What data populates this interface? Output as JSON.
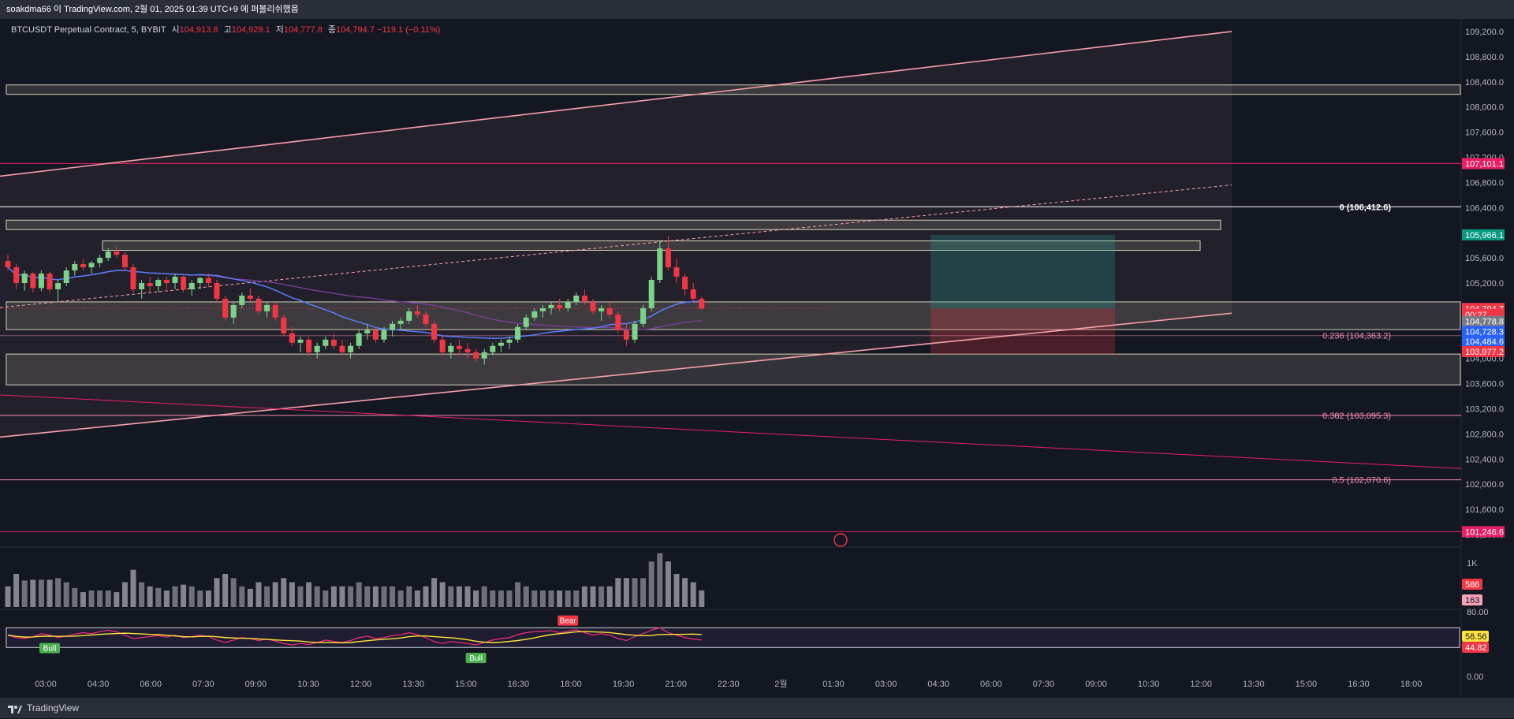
{
  "topbar": {
    "text": "soakdma66 이 TradingView.com, 2월 01, 2025 01:39 UTC+9 에 퍼블리쉬했음"
  },
  "legend": {
    "symbol": "BTCUSDT Perpetual Contract, 5, BYBIT",
    "open_label": "시",
    "open": "104,913.8",
    "high_label": "고",
    "high": "104,929.1",
    "low_label": "저",
    "low": "104,777.8",
    "close_label": "종",
    "close": "104,794.7",
    "change": "−119.1 (−0.11%)"
  },
  "footer": {
    "brand": "TradingView"
  },
  "colors": {
    "up": "#26a69a",
    "up_candle": "#7bd389",
    "down": "#f23645",
    "channel": "#f7a0a8",
    "ma_blue": "#5b7cfa",
    "ma_purple": "#7e3fa0",
    "rsi": "#f02c76",
    "rsi_ma": "#ffe23d"
  },
  "chart_data": {
    "type": "candlestick",
    "price_axis": {
      "range": [
        101000,
        109400
      ],
      "ticks": [
        "109,200.0",
        "108,800.0",
        "108,400.0",
        "108,000.0",
        "107,600.0",
        "107,200.0",
        "106,800.0",
        "106,400.0",
        "106,000.0",
        "105,600.0",
        "105,200.0",
        "104,800.0",
        "104,400.0",
        "104,000.0",
        "103,600.0",
        "103,200.0",
        "102,800.0",
        "102,400.0",
        "102,000.0",
        "101,600.0",
        "101,200.0"
      ]
    },
    "time_axis": [
      "03:00",
      "04:30",
      "06:00",
      "07:30",
      "09:00",
      "10:30",
      "12:00",
      "13:30",
      "15:00",
      "16:30",
      "18:00",
      "19:30",
      "21:00",
      "22:30",
      "2월",
      "01:30",
      "03:00",
      "04:30",
      "06:00",
      "07:30",
      "09:00",
      "10:30",
      "12:00",
      "13:30",
      "15:00",
      "16:30",
      "18:00"
    ],
    "price_labels": [
      {
        "text": "107,101.1",
        "price": 107101.1,
        "color": "#e91e63"
      },
      {
        "text": "105,966.1",
        "price": 105966.1,
        "color": "#089981"
      },
      {
        "text": "104,794.7",
        "price": 104794.7,
        "color": "#f23645"
      },
      {
        "text": "00:27",
        "price": 104700,
        "color": "#f23645"
      },
      {
        "text": "104,778.8",
        "price": 104590,
        "color": "#787b86"
      },
      {
        "text": "104,728.3",
        "price": 104430,
        "color": "#2962ff"
      },
      {
        "text": "104,484.6",
        "price": 104270,
        "color": "#2962ff"
      },
      {
        "text": "103,977.2",
        "price": 104110,
        "color": "#f23645"
      },
      {
        "text": "101,246.6",
        "price": 101246.6,
        "color": "#e91e63"
      }
    ],
    "fib_levels": [
      {
        "label": "0 (106,412.6)",
        "price": 106412.6
      },
      {
        "label": "0.236 (104,363.2)",
        "price": 104363.2
      },
      {
        "label": "0.382 (103,095.3)",
        "price": 103095.3
      },
      {
        "label": "0.5 (102,070.6)",
        "price": 102070.6
      }
    ],
    "series": [
      {
        "kind": "ohlc",
        "values": [
          [
            105550,
            105650,
            105400,
            105450
          ],
          [
            105450,
            105500,
            105100,
            105200
          ],
          [
            105200,
            105400,
            105080,
            105350
          ],
          [
            105350,
            105380,
            105050,
            105120
          ],
          [
            105120,
            105400,
            105070,
            105350
          ],
          [
            105350,
            105380,
            105050,
            105100
          ],
          [
            105100,
            105250,
            104900,
            105200
          ],
          [
            105200,
            105450,
            105150,
            105400
          ],
          [
            105400,
            105550,
            105320,
            105500
          ],
          [
            105500,
            105580,
            105400,
            105450
          ],
          [
            105450,
            105550,
            105350,
            105520
          ],
          [
            105520,
            105650,
            105450,
            105600
          ],
          [
            105600,
            105750,
            105550,
            105700
          ],
          [
            105700,
            105780,
            105600,
            105650
          ],
          [
            105650,
            105700,
            105400,
            105450
          ],
          [
            105450,
            105500,
            105050,
            105100
          ],
          [
            105100,
            105250,
            104950,
            105200
          ],
          [
            105200,
            105300,
            105050,
            105150
          ],
          [
            105150,
            105280,
            105050,
            105250
          ],
          [
            105250,
            105300,
            105100,
            105200
          ],
          [
            105200,
            105350,
            105100,
            105300
          ],
          [
            105300,
            105320,
            105050,
            105100
          ],
          [
            105100,
            105250,
            105000,
            105200
          ],
          [
            105200,
            105300,
            105100,
            105280
          ],
          [
            105280,
            105350,
            105150,
            105200
          ],
          [
            105200,
            105250,
            104900,
            104950
          ],
          [
            104950,
            105000,
            104600,
            104650
          ],
          [
            104650,
            104900,
            104550,
            104850
          ],
          [
            104850,
            105050,
            104800,
            105000
          ],
          [
            105000,
            105120,
            104900,
            104950
          ],
          [
            104950,
            105000,
            104700,
            104750
          ],
          [
            104750,
            104900,
            104650,
            104850
          ],
          [
            104850,
            104900,
            104600,
            104650
          ],
          [
            104650,
            104700,
            104350,
            104400
          ],
          [
            104400,
            104500,
            104200,
            104250
          ],
          [
            104250,
            104350,
            104100,
            104300
          ],
          [
            104300,
            104350,
            104050,
            104100
          ],
          [
            104100,
            104250,
            104000,
            104200
          ],
          [
            104200,
            104350,
            104150,
            104300
          ],
          [
            104300,
            104400,
            104150,
            104200
          ],
          [
            104200,
            104300,
            104050,
            104100
          ],
          [
            104100,
            104250,
            104000,
            104200
          ],
          [
            104200,
            104450,
            104150,
            104400
          ],
          [
            104400,
            104550,
            104300,
            104450
          ],
          [
            104450,
            104500,
            104250,
            104300
          ],
          [
            104300,
            104500,
            104250,
            104450
          ],
          [
            104450,
            104600,
            104350,
            104550
          ],
          [
            104550,
            104650,
            104450,
            104600
          ],
          [
            104600,
            104800,
            104550,
            104750
          ],
          [
            104750,
            104850,
            104650,
            104700
          ],
          [
            104700,
            104750,
            104500,
            104550
          ],
          [
            104550,
            104600,
            104250,
            104300
          ],
          [
            104300,
            104350,
            104050,
            104100
          ],
          [
            104100,
            104250,
            104000,
            104200
          ],
          [
            104200,
            104300,
            104050,
            104150
          ],
          [
            104150,
            104250,
            104000,
            104100
          ],
          [
            104100,
            104150,
            103950,
            104000
          ],
          [
            104000,
            104150,
            103900,
            104100
          ],
          [
            104100,
            104250,
            104050,
            104200
          ],
          [
            104200,
            104300,
            104100,
            104250
          ],
          [
            104250,
            104350,
            104150,
            104300
          ],
          [
            104300,
            104550,
            104250,
            104500
          ],
          [
            104500,
            104700,
            104450,
            104650
          ],
          [
            104650,
            104800,
            104600,
            104750
          ],
          [
            104750,
            104850,
            104650,
            104800
          ],
          [
            104800,
            104900,
            104700,
            104850
          ],
          [
            104850,
            104950,
            104750,
            104800
          ],
          [
            104800,
            104950,
            104750,
            104900
          ],
          [
            104900,
            105050,
            104850,
            105000
          ],
          [
            105000,
            105100,
            104850,
            104900
          ],
          [
            104900,
            104950,
            104700,
            104750
          ],
          [
            104750,
            104850,
            104600,
            104800
          ],
          [
            104800,
            104900,
            104650,
            104700
          ],
          [
            104700,
            104750,
            104400,
            104450
          ],
          [
            104450,
            104550,
            104200,
            104300
          ],
          [
            104300,
            104600,
            104250,
            104550
          ],
          [
            104550,
            104850,
            104500,
            104800
          ],
          [
            104800,
            105300,
            104750,
            105250
          ],
          [
            105250,
            105850,
            105200,
            105750
          ],
          [
            105750,
            105950,
            105400,
            105450
          ],
          [
            105450,
            105600,
            105200,
            105300
          ],
          [
            105300,
            105350,
            105000,
            105100
          ],
          [
            105100,
            105200,
            104900,
            104950
          ],
          [
            104950,
            104980,
            104780,
            104795
          ]
        ]
      },
      {
        "kind": "volume",
        "max": 1200,
        "ticks": [
          "1K"
        ],
        "labels": [
          {
            "text": "586",
            "color": "#f23645"
          },
          {
            "text": "163",
            "color": "#f5a3b5"
          }
        ]
      },
      {
        "kind": "rsi",
        "range": [
          0,
          80
        ],
        "ticks": [
          "80.00",
          "0.00"
        ],
        "values": [
          55,
          50,
          48,
          52,
          58,
          55,
          50,
          53,
          57,
          60,
          58,
          62,
          65,
          62,
          55,
          48,
          50,
          52,
          54,
          51,
          55,
          50,
          52,
          55,
          52,
          45,
          40,
          45,
          50,
          48,
          44,
          47,
          43,
          38,
          35,
          38,
          36,
          40,
          45,
          42,
          40,
          44,
          50,
          53,
          48,
          50,
          54,
          56,
          60,
          56,
          50,
          42,
          38,
          42,
          40,
          38,
          35,
          40,
          45,
          48,
          50,
          56,
          60,
          62,
          63,
          64,
          60,
          63,
          66,
          60,
          55,
          58,
          55,
          48,
          44,
          52,
          58,
          65,
          70,
          60,
          55,
          50,
          47,
          45
        ],
        "labels": [
          {
            "text": "58.56",
            "color": "#ffe23d"
          },
          {
            "text": "44.82",
            "color": "#f23645"
          }
        ],
        "signals": [
          {
            "text": "Bull",
            "type": "bull"
          },
          {
            "text": "Bull",
            "type": "bull"
          },
          {
            "text": "Bear",
            "type": "bear"
          }
        ]
      }
    ]
  }
}
